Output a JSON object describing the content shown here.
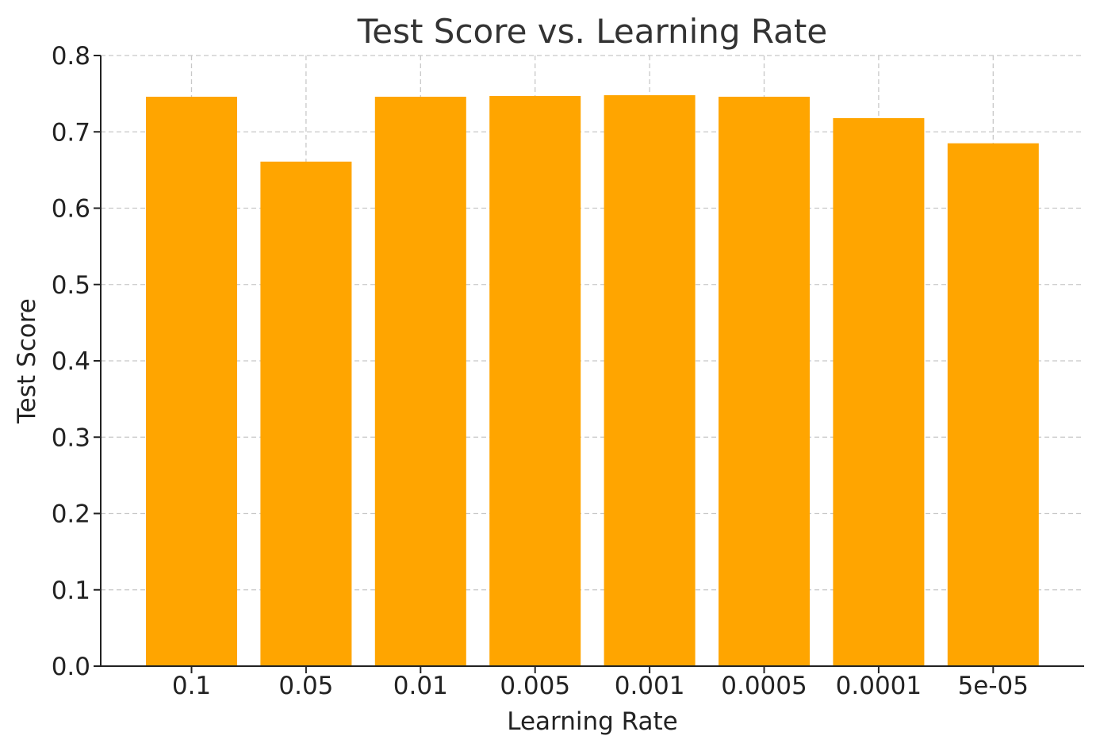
{
  "chart_data": {
    "type": "bar",
    "title": "Test Score vs. Learning Rate",
    "xlabel": "Learning Rate",
    "ylabel": "Test Score",
    "categories": [
      "0.1",
      "0.05",
      "0.01",
      "0.005",
      "0.001",
      "0.0005",
      "0.0001",
      "5e-05"
    ],
    "values": [
      0.746,
      0.661,
      0.746,
      0.747,
      0.748,
      0.746,
      0.718,
      0.685
    ],
    "ylim": [
      0,
      0.8
    ],
    "yticks": [
      "0.0",
      "0.1",
      "0.2",
      "0.3",
      "0.4",
      "0.5",
      "0.6",
      "0.7",
      "0.8"
    ],
    "grid": true,
    "bar_color": "#ffa500"
  }
}
